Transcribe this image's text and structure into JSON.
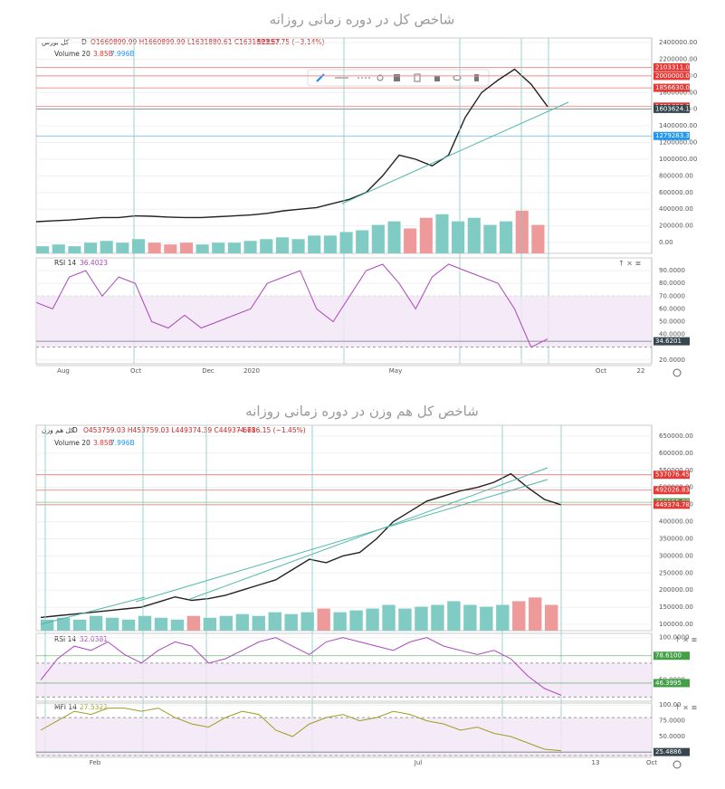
{
  "chart_data": [
    {
      "type": "line",
      "title": "شاخص کل در دوره زمانی روزانه",
      "symbol": "کل بورس",
      "interval": "D",
      "ohlc": "O1660899.99 H1660899.99 L1631880.61 C1631883.67",
      "change": "−52857.75 (−3.14%)",
      "volume_label": "Volume 20",
      "volume_values": [
        "3.85B",
        "7.996B"
      ],
      "ylim": [
        -130000,
        2455000
      ],
      "grid": true,
      "color": "#222222",
      "yticks": [
        {
          "value": 2400000,
          "label": "2400000.00"
        },
        {
          "value": 2200000,
          "label": "2200000.00"
        },
        {
          "value": 2000000,
          "label": "2000000.00"
        },
        {
          "value": 1800000,
          "label": "1800000.00"
        },
        {
          "value": 1600000,
          "label": "1600000.00"
        },
        {
          "value": 1400000,
          "label": "1400000.00"
        },
        {
          "value": 1200000,
          "label": "1200000.00"
        },
        {
          "value": 1000000,
          "label": "1000000.00"
        },
        {
          "value": 800000,
          "label": "800000.00"
        },
        {
          "value": 600000,
          "label": "600000.00"
        },
        {
          "value": 400000,
          "label": "400000.00"
        },
        {
          "value": 200000,
          "label": "200000.00"
        },
        {
          "value": 0,
          "label": "0.00"
        }
      ],
      "values": [
        250000,
        260000,
        270000,
        285000,
        300000,
        300000,
        320000,
        315000,
        305000,
        300000,
        300000,
        310000,
        320000,
        330000,
        350000,
        380000,
        400000,
        420000,
        470000,
        520000,
        600000,
        800000,
        1050000,
        1000000,
        920000,
        1050000,
        1500000,
        1800000,
        1950000,
        2080000,
        1900000,
        1631883.67
      ],
      "volume": [
        2,
        2.5,
        2,
        3,
        3.5,
        3,
        4,
        3,
        2.5,
        3,
        2.5,
        3,
        3,
        3.5,
        4,
        4.5,
        4,
        5,
        5,
        6,
        6.5,
        8,
        9,
        7,
        10,
        11,
        9,
        10,
        8,
        9,
        12,
        8
      ],
      "volume_ylim": [
        0,
        14
      ],
      "price_labels": [
        {
          "value": 2103311,
          "label": "2103311.00",
          "color": "#e53935"
        },
        {
          "value": 2000000,
          "label": "2000000.00",
          "color": "#e53935"
        },
        {
          "value": 1856630,
          "label": "1856630.00",
          "color": "#e53935"
        },
        {
          "value": 1631883.67,
          "label": "1631883.67",
          "color": "#e53935"
        },
        {
          "value": 1603624.19,
          "label": "1603624.19",
          "color": "#37474f"
        },
        {
          "value": 1279283.39,
          "label": "1279283.39",
          "color": "#2196f3"
        }
      ],
      "xtick_labels": [
        "Aug",
        "Oct",
        "Dec",
        "2020",
        "May",
        "Oct",
        "22"
      ]
    },
    {
      "type": "line",
      "name": "RSI 14",
      "current": "36.4023",
      "ylim": [
        17,
        100
      ],
      "band": [
        30,
        70
      ],
      "grid": true,
      "color": "#ab47bc",
      "yticks": [
        {
          "value": 90,
          "label": "90.0000"
        },
        {
          "value": 80,
          "label": "80.0000"
        },
        {
          "value": 70,
          "label": "70.0000"
        },
        {
          "value": 60,
          "label": "60.0000"
        },
        {
          "value": 50,
          "label": "50.0000"
        },
        {
          "value": 40,
          "label": "40.0000"
        },
        {
          "value": 20,
          "label": "20.0000"
        }
      ],
      "values": [
        65,
        60,
        85,
        90,
        70,
        85,
        80,
        50,
        45,
        55,
        45,
        50,
        55,
        60,
        80,
        85,
        90,
        60,
        50,
        70,
        90,
        95,
        80,
        60,
        85,
        95,
        90,
        85,
        80,
        60,
        30,
        36.4023
      ],
      "price_labels": [
        {
          "value": 34.6201,
          "label": "34.6201",
          "color": "#37474f"
        }
      ]
    },
    {
      "type": "line",
      "title": "شاخص کل هم وزن در دوره زمانی روزانه",
      "symbol": "کل هم وزن",
      "interval": "D",
      "ohlc": "O453759.03 H453759.03 L449374.39 C449374.78",
      "change": "−6616.15 (−1.45%)",
      "volume_label": "Volume 20",
      "volume_values": [
        "3.85B",
        "7.996B"
      ],
      "ylim": [
        81500,
        681700
      ],
      "grid": true,
      "color": "#222222",
      "yticks": [
        {
          "value": 650000,
          "label": "650000.00"
        },
        {
          "value": 600000,
          "label": "600000.00"
        },
        {
          "value": 550000,
          "label": "550000.00"
        },
        {
          "value": 500000,
          "label": "500000.00"
        },
        {
          "value": 450000,
          "label": "450000.00"
        },
        {
          "value": 400000,
          "label": "400000.00"
        },
        {
          "value": 350000,
          "label": "350000.00"
        },
        {
          "value": 300000,
          "label": "300000.00"
        },
        {
          "value": 250000,
          "label": "250000.00"
        },
        {
          "value": 200000,
          "label": "200000.00"
        },
        {
          "value": 150000,
          "label": "150000.00"
        },
        {
          "value": 100000,
          "label": "100000.00"
        }
      ],
      "values": [
        120000,
        125000,
        130000,
        135000,
        140000,
        145000,
        150000,
        165000,
        180000,
        170000,
        175000,
        185000,
        200000,
        215000,
        230000,
        260000,
        290000,
        280000,
        300000,
        310000,
        350000,
        400000,
        430000,
        460000,
        475000,
        490000,
        500000,
        515000,
        540000,
        500000,
        465000,
        449374.78
      ],
      "volume": [
        3,
        3.5,
        3,
        4,
        3.5,
        3,
        4,
        3.5,
        3,
        4,
        3.5,
        4,
        4.5,
        4,
        5,
        4.5,
        5,
        6,
        5,
        5.5,
        6,
        7,
        6,
        6.5,
        7,
        8,
        7,
        6.5,
        7,
        8,
        9,
        7
      ],
      "volume_ylim": [
        0,
        14
      ],
      "price_labels": [
        {
          "value": 537076.45,
          "label": "537076.45",
          "color": "#e53935"
        },
        {
          "value": 492026.83,
          "label": "492026.83",
          "color": "#e53935"
        },
        {
          "value": 456555,
          "label": "456555.00",
          "color": "#43a047"
        },
        {
          "value": 449374.78,
          "label": "449374.78",
          "color": "#e53935"
        }
      ],
      "xtick_labels": [
        "Feb",
        "Jul",
        "13",
        "Oct"
      ]
    },
    {
      "type": "line",
      "name": "RSI 14",
      "current": "32.0381",
      "ylim": [
        25,
        105
      ],
      "band": [
        30,
        70
      ],
      "grid": true,
      "color": "#ab47bc",
      "yticks": [
        {
          "value": 100,
          "label": "100.0000"
        },
        {
          "value": 50,
          "label": "50.0000"
        }
      ],
      "values": [
        50,
        75,
        90,
        85,
        95,
        80,
        70,
        85,
        95,
        90,
        70,
        75,
        85,
        95,
        100,
        90,
        80,
        95,
        100,
        95,
        90,
        85,
        95,
        100,
        90,
        85,
        80,
        85,
        75,
        55,
        40,
        32.0381
      ],
      "price_labels": [
        {
          "value": 78.61,
          "label": "78.6100",
          "color": "#43a047"
        },
        {
          "value": 46.3995,
          "label": "46.3995",
          "color": "#43a047"
        }
      ]
    },
    {
      "type": "line",
      "name": "MFI 14",
      "current": "27.5322",
      "ylim": [
        20,
        103
      ],
      "band": [
        20,
        80
      ],
      "grid": true,
      "color": "#9e9d24",
      "yticks": [
        {
          "value": 100,
          "label": "100.00"
        },
        {
          "value": 75,
          "label": "75.0000"
        },
        {
          "value": 50,
          "label": "50.0000"
        }
      ],
      "values": [
        60,
        75,
        90,
        85,
        95,
        95,
        90,
        95,
        80,
        70,
        65,
        80,
        90,
        85,
        60,
        50,
        70,
        80,
        85,
        75,
        80,
        90,
        85,
        75,
        70,
        60,
        65,
        55,
        50,
        40,
        30,
        27.5322
      ],
      "price_labels": [
        {
          "value": 25.4886,
          "label": "25.4886",
          "color": "#37474f"
        }
      ]
    }
  ]
}
